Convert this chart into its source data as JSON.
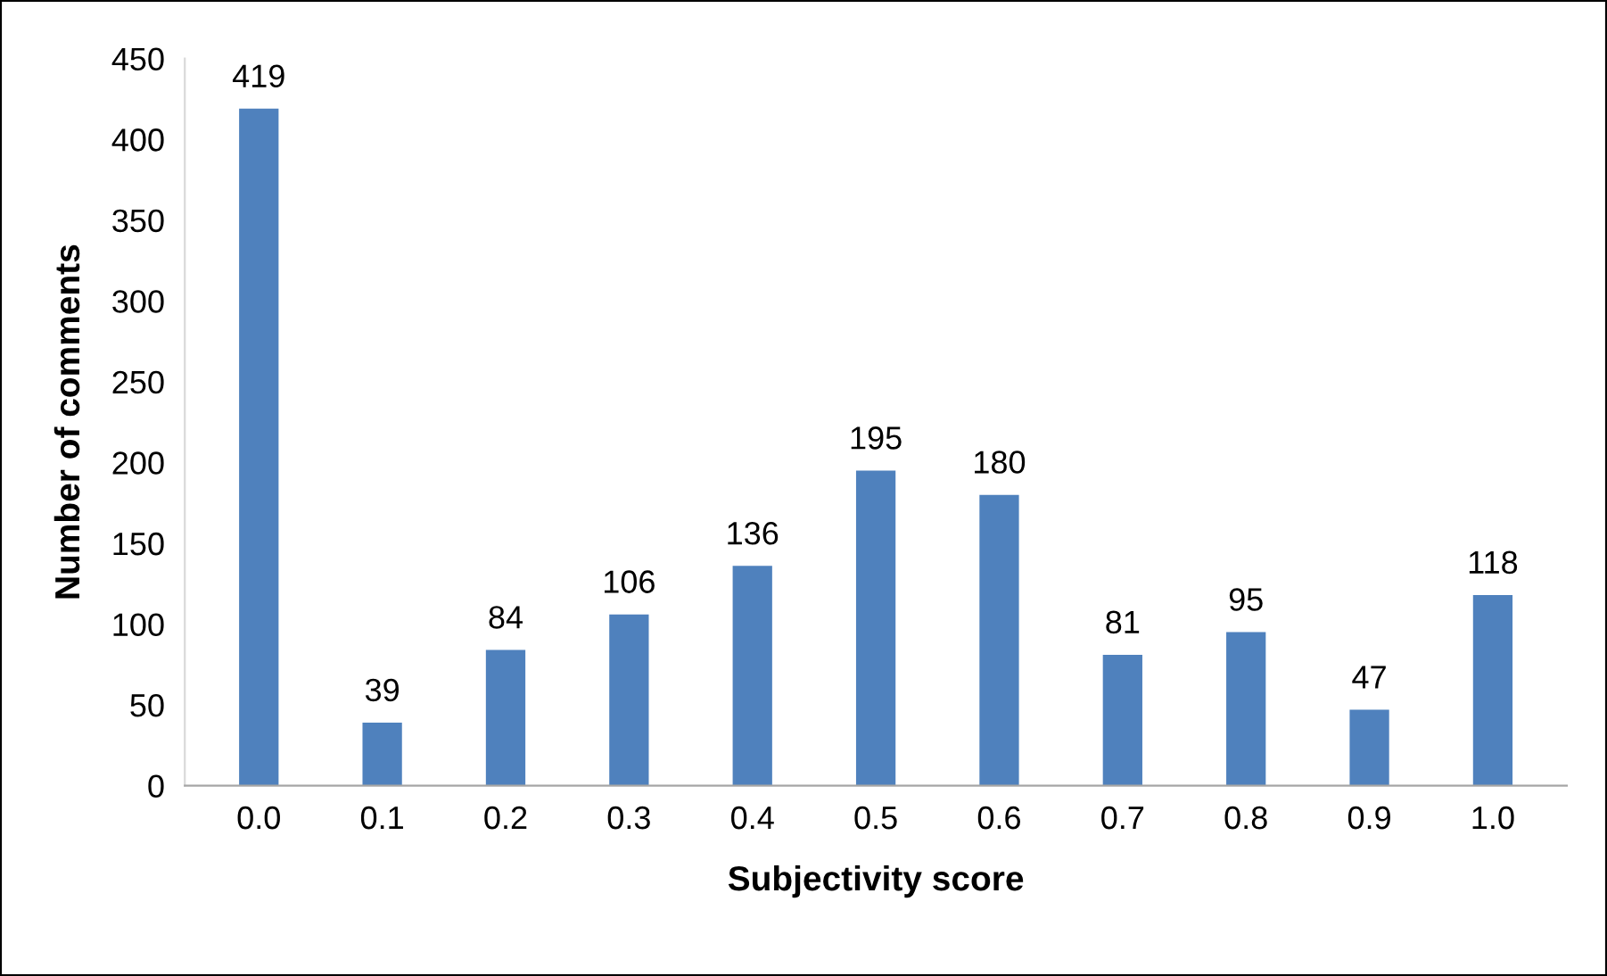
{
  "chart_data": {
    "type": "bar",
    "xlabel": "Subjectivity score",
    "ylabel": "Number of comments",
    "categories": [
      "0.0",
      "0.1",
      "0.2",
      "0.3",
      "0.4",
      "0.5",
      "0.6",
      "0.7",
      "0.8",
      "0.9",
      "1.0"
    ],
    "values": [
      419,
      39,
      84,
      106,
      136,
      195,
      180,
      81,
      95,
      47,
      118
    ],
    "color": "#4f81bd",
    "ylim": [
      0,
      450
    ],
    "yticks": [
      0,
      50,
      100,
      150,
      200,
      250,
      300,
      350,
      400,
      450
    ],
    "data_labels": true,
    "grid": false,
    "legend": false
  }
}
